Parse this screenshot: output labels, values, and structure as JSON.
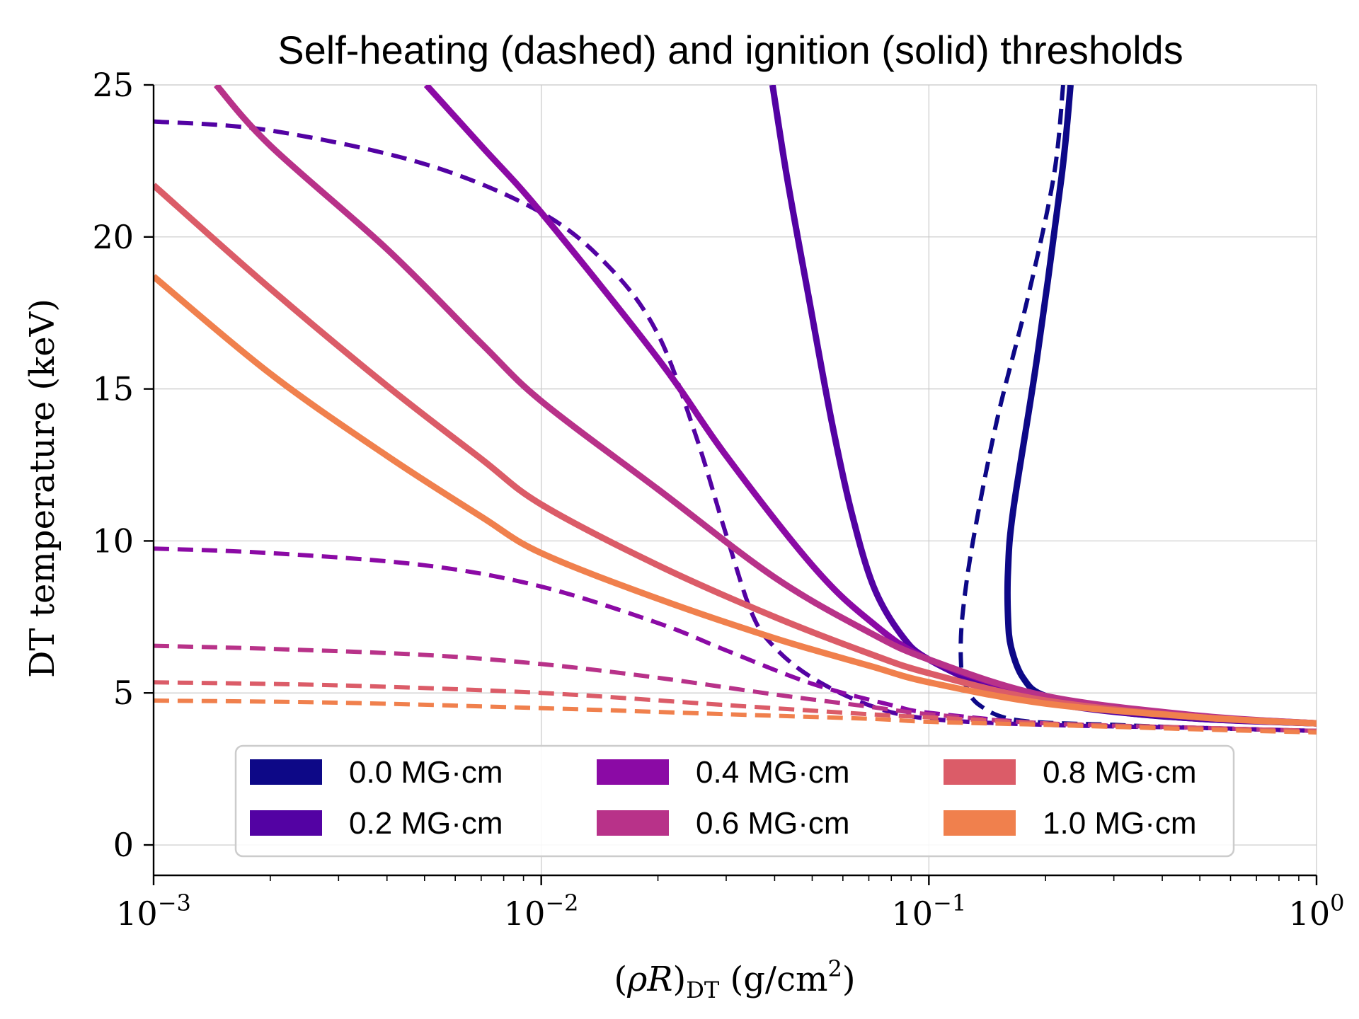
{
  "chart_data": {
    "type": "line",
    "title": "Self-heating (dashed) and ignition (solid) thresholds",
    "xlabel": "(ρR)DT (g/cm²)",
    "xlabel_parts": {
      "open": "(",
      "rho": "ρ",
      "r": "R",
      "close": ")",
      "sub": "DT",
      "units_open": " (g/cm",
      "sup": "2",
      "units_close": ")"
    },
    "ylabel": "DT temperature (keV)",
    "xscale": "log",
    "xlim": [
      0.001,
      1.0
    ],
    "ylim": [
      -1,
      25
    ],
    "grid": true,
    "x_ticks": [
      {
        "value": 0.001,
        "base": "10",
        "exp": "−3"
      },
      {
        "value": 0.01,
        "base": "10",
        "exp": "−2"
      },
      {
        "value": 0.1,
        "base": "10",
        "exp": "−1"
      },
      {
        "value": 1.0,
        "base": "10",
        "exp": "0"
      }
    ],
    "y_ticks": [
      {
        "value": 0,
        "label": "0"
      },
      {
        "value": 5,
        "label": "5"
      },
      {
        "value": 10,
        "label": "10"
      },
      {
        "value": 15,
        "label": "15"
      },
      {
        "value": 20,
        "label": "20"
      },
      {
        "value": 25,
        "label": "25"
      }
    ],
    "legend_position": "lower-center",
    "series": [
      {
        "name": "0.0 MG·cm",
        "color": "#0d0887",
        "ignition": [
          [
            0.232,
            25
          ],
          [
            0.22,
            22
          ],
          [
            0.19,
            16
          ],
          [
            0.165,
            11
          ],
          [
            0.16,
            9
          ],
          [
            0.16,
            7.5
          ],
          [
            0.163,
            6.5
          ],
          [
            0.175,
            5.5
          ],
          [
            0.2,
            4.9
          ],
          [
            0.3,
            4.4
          ],
          [
            0.5,
            4.15
          ],
          [
            1.0,
            4.0
          ]
        ],
        "self_heating": [
          [
            0.222,
            25
          ],
          [
            0.21,
            22
          ],
          [
            0.18,
            18
          ],
          [
            0.15,
            14
          ],
          [
            0.13,
            10
          ],
          [
            0.122,
            7.5
          ],
          [
            0.121,
            6
          ],
          [
            0.124,
            5.3
          ],
          [
            0.135,
            4.6
          ],
          [
            0.17,
            4.1
          ],
          [
            0.3,
            3.95
          ],
          [
            0.5,
            3.85
          ],
          [
            1.0,
            3.75
          ]
        ]
      },
      {
        "name": "0.2 MG·cm",
        "color": "#5302a3",
        "ignition": [
          [
            0.0395,
            25
          ],
          [
            0.043,
            22
          ],
          [
            0.049,
            18
          ],
          [
            0.056,
            14
          ],
          [
            0.063,
            11
          ],
          [
            0.072,
            8.5
          ],
          [
            0.085,
            6.9
          ],
          [
            0.1,
            6.1
          ],
          [
            0.15,
            5.1
          ],
          [
            0.25,
            4.5
          ],
          [
            0.5,
            4.15
          ],
          [
            1.0,
            4.0
          ]
        ],
        "self_heating": [
          [
            0.001,
            23.8
          ],
          [
            0.002,
            23.5
          ],
          [
            0.005,
            22.4
          ],
          [
            0.01,
            20.8
          ],
          [
            0.015,
            19
          ],
          [
            0.02,
            16.8
          ],
          [
            0.025,
            13.5
          ],
          [
            0.03,
            10.2
          ],
          [
            0.035,
            7.6
          ],
          [
            0.04,
            6.5
          ],
          [
            0.05,
            5.5
          ],
          [
            0.07,
            4.6
          ],
          [
            0.1,
            4.15
          ],
          [
            0.2,
            3.95
          ],
          [
            0.5,
            3.85
          ],
          [
            1.0,
            3.75
          ]
        ]
      },
      {
        "name": "0.4 MG·cm",
        "color": "#8b0aa5",
        "ignition": [
          [
            0.00505,
            25
          ],
          [
            0.007,
            23
          ],
          [
            0.01,
            20.8
          ],
          [
            0.02,
            16
          ],
          [
            0.03,
            12.8
          ],
          [
            0.05,
            9.2
          ],
          [
            0.07,
            7.4
          ],
          [
            0.1,
            6.1
          ],
          [
            0.2,
            4.85
          ],
          [
            0.4,
            4.3
          ],
          [
            1.0,
            4.0
          ]
        ],
        "self_heating": [
          [
            0.001,
            9.75
          ],
          [
            0.002,
            9.6
          ],
          [
            0.005,
            9.2
          ],
          [
            0.01,
            8.5
          ],
          [
            0.02,
            7.3
          ],
          [
            0.03,
            6.4
          ],
          [
            0.05,
            5.3
          ],
          [
            0.08,
            4.6
          ],
          [
            0.1,
            4.35
          ],
          [
            0.2,
            4.0
          ],
          [
            0.5,
            3.85
          ],
          [
            1.0,
            3.75
          ]
        ]
      },
      {
        "name": "0.6 MG·cm",
        "color": "#b83289",
        "ignition": [
          [
            0.00145,
            25
          ],
          [
            0.002,
            23
          ],
          [
            0.004,
            19.6
          ],
          [
            0.007,
            16.5
          ],
          [
            0.01,
            14.6
          ],
          [
            0.02,
            11.7
          ],
          [
            0.04,
            8.8
          ],
          [
            0.07,
            7
          ],
          [
            0.1,
            6.1
          ],
          [
            0.2,
            4.9
          ],
          [
            0.5,
            4.25
          ],
          [
            1.0,
            4.0
          ]
        ],
        "self_heating": [
          [
            0.001,
            6.55
          ],
          [
            0.002,
            6.45
          ],
          [
            0.005,
            6.25
          ],
          [
            0.01,
            5.95
          ],
          [
            0.02,
            5.5
          ],
          [
            0.04,
            4.95
          ],
          [
            0.07,
            4.55
          ],
          [
            0.1,
            4.3
          ],
          [
            0.2,
            4.0
          ],
          [
            0.5,
            3.85
          ],
          [
            1.0,
            3.75
          ]
        ]
      },
      {
        "name": "0.8 MG·cm",
        "color": "#db5c68",
        "ignition": [
          [
            0.001,
            21.7
          ],
          [
            0.002,
            18.3
          ],
          [
            0.004,
            15.1
          ],
          [
            0.007,
            12.7
          ],
          [
            0.01,
            11.2
          ],
          [
            0.02,
            9.2
          ],
          [
            0.04,
            7.5
          ],
          [
            0.07,
            6.3
          ],
          [
            0.1,
            5.65
          ],
          [
            0.2,
            4.75
          ],
          [
            0.5,
            4.2
          ],
          [
            1.0,
            4.0
          ]
        ],
        "self_heating": [
          [
            0.001,
            5.35
          ],
          [
            0.003,
            5.25
          ],
          [
            0.01,
            5.0
          ],
          [
            0.03,
            4.6
          ],
          [
            0.07,
            4.3
          ],
          [
            0.1,
            4.2
          ],
          [
            0.2,
            4.0
          ],
          [
            0.5,
            3.85
          ],
          [
            1.0,
            3.75
          ]
        ]
      },
      {
        "name": "1.0 MG·cm",
        "color": "#f0804d",
        "ignition": [
          [
            0.001,
            18.7
          ],
          [
            0.002,
            15.5
          ],
          [
            0.004,
            12.8
          ],
          [
            0.007,
            10.8
          ],
          [
            0.01,
            9.6
          ],
          [
            0.02,
            8.1
          ],
          [
            0.04,
            6.8
          ],
          [
            0.07,
            5.9
          ],
          [
            0.1,
            5.35
          ],
          [
            0.2,
            4.65
          ],
          [
            0.5,
            4.2
          ],
          [
            1.0,
            4.0
          ]
        ],
        "self_heating": [
          [
            0.001,
            4.75
          ],
          [
            0.003,
            4.68
          ],
          [
            0.01,
            4.5
          ],
          [
            0.03,
            4.3
          ],
          [
            0.07,
            4.15
          ],
          [
            0.1,
            4.05
          ],
          [
            0.2,
            3.95
          ],
          [
            0.5,
            3.8
          ],
          [
            1.0,
            3.7
          ]
        ]
      }
    ]
  }
}
